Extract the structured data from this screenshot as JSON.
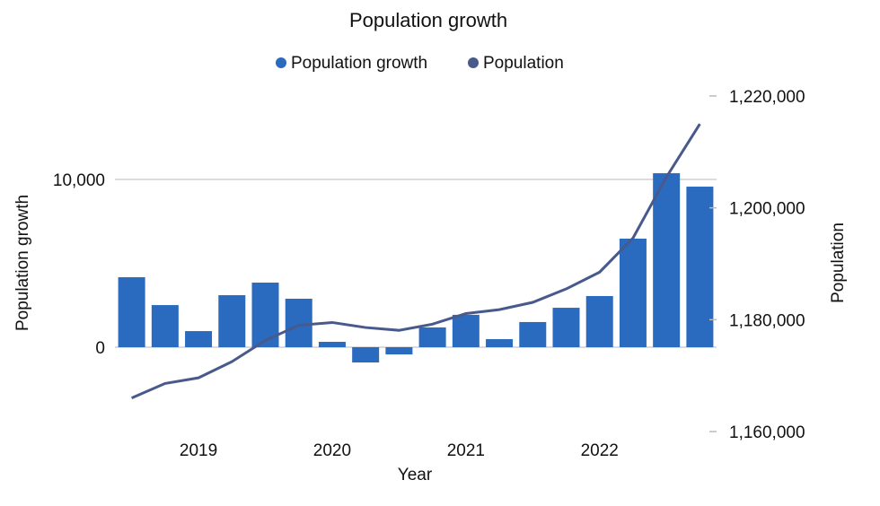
{
  "chart_data": {
    "type": "bar+line",
    "title": "Population growth",
    "xlabel": "Year",
    "ylabel_left": "Population growth",
    "ylabel_right": "Population",
    "legend": [
      "Population growth",
      "Population"
    ],
    "legend_position": "top",
    "x_tick_labels": [
      "",
      "",
      "2019",
      "",
      "",
      "",
      "2020",
      "",
      "",
      "",
      "2021",
      "",
      "",
      "",
      "2022",
      "",
      "",
      ""
    ],
    "left_axis": {
      "ticks": [
        0,
        10000
      ],
      "tick_labels": [
        "0",
        "10,000"
      ],
      "ylim": [
        -5500,
        16000
      ]
    },
    "right_axis": {
      "ticks": [
        1160000,
        1180000,
        1200000,
        1220000
      ],
      "tick_labels": [
        "1,160,000",
        "1,180,000",
        "1,200,000",
        "1,220,000"
      ],
      "ylim": [
        1160000,
        1220000
      ]
    },
    "grid": true,
    "series": [
      {
        "name": "Population growth",
        "type": "bar",
        "axis": "left",
        "color": "#2a6bbf",
        "values": [
          4170,
          2510,
          960,
          3100,
          3850,
          2890,
          320,
          -910,
          -430,
          1180,
          1930,
          480,
          1500,
          2350,
          3050,
          6470,
          10370,
          9570
        ]
      },
      {
        "name": "Population",
        "type": "line",
        "axis": "right",
        "color": "#48598c",
        "values": [
          1166000,
          1168600,
          1169600,
          1172500,
          1176300,
          1179000,
          1179500,
          1178600,
          1178100,
          1179200,
          1181100,
          1181800,
          1183100,
          1185500,
          1188500,
          1194600,
          1205500,
          1215000
        ]
      }
    ],
    "title_color": "#2f6fba"
  }
}
